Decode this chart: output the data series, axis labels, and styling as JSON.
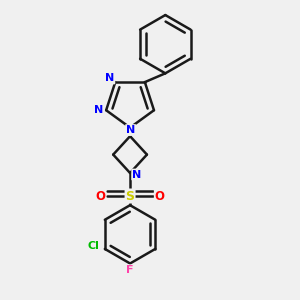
{
  "background_color": "#f0f0f0",
  "bond_color": "#1a1a1a",
  "bond_width": 1.8,
  "N_color": "#0000ff",
  "S_color": "#cccc00",
  "O_color": "#ff0000",
  "Cl_color": "#00bb00",
  "F_color": "#ff44aa",
  "figsize": [
    3.0,
    3.0
  ],
  "dpi": 100,
  "xlim": [
    0.1,
    0.9
  ],
  "ylim": [
    0.02,
    0.98
  ]
}
